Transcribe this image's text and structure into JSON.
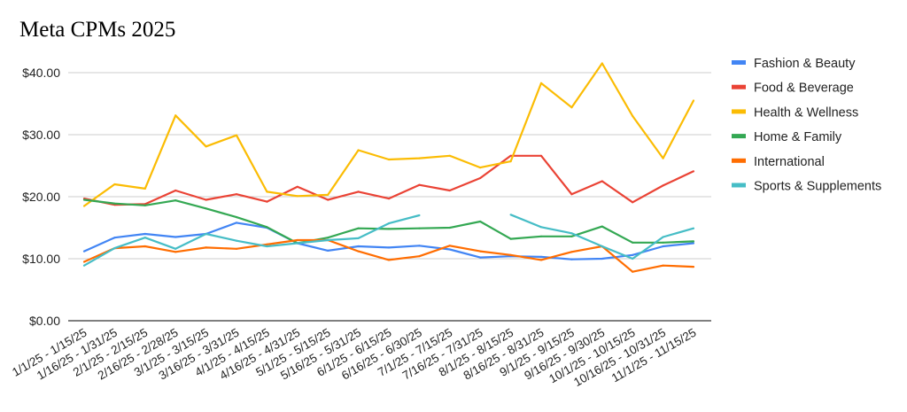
{
  "chart_data": {
    "type": "line",
    "title": "Meta CPMs 2025",
    "xlabel": "",
    "ylabel": "",
    "ylim": [
      0,
      40
    ],
    "yticks": [
      "$0.00",
      "$10.00",
      "$20.00",
      "$30.00",
      "$40.00"
    ],
    "ytick_values": [
      0,
      10,
      20,
      30,
      40
    ],
    "grid": true,
    "legend": "right",
    "categories": [
      "1/1/25 - 1/15/25",
      "1/16/25 - 1/31/25",
      "2/1/25 - 2/15/25",
      "2/16/25 - 2/28/25",
      "3/1/25 - 3/15/25",
      "3/16/25 - 3/31/25",
      "4/1/25 - 4/15/25",
      "4/16/25 - 4/31/25",
      "5/1/25 - 5/15/25",
      "5/16/25 - 5/31/25",
      "6/1/25 - 6/15/25",
      "6/16/25 - 6/30/25",
      "7/1/25 - 7/15/25",
      "7/16/25 - 7/31/25",
      "8/1/25 - 8/15/25",
      "8/16/25 - 8/31/25",
      "9/1/25 - 9/15/25",
      "9/16/25 - 9/30/25",
      "10/1/25 - 10/15/25",
      "10/16/25 - 10/31/25",
      "11/1/25 - 11/15/25"
    ],
    "series": [
      {
        "name": "Fashion & Beauty",
        "color": "#4285f4",
        "values": [
          11.2,
          13.4,
          14.0,
          13.5,
          14.0,
          15.8,
          15.0,
          12.5,
          11.3,
          12.0,
          11.8,
          12.1,
          11.5,
          10.2,
          10.4,
          10.3,
          9.9,
          10.0,
          10.6,
          12.0,
          12.5
        ]
      },
      {
        "name": "Food & Beverage",
        "color": "#ea4335",
        "values": [
          19.7,
          18.7,
          18.8,
          21.0,
          19.5,
          20.4,
          19.2,
          21.6,
          19.5,
          20.8,
          19.7,
          21.9,
          21.0,
          23.0,
          26.6,
          26.6,
          20.4,
          22.5,
          19.1,
          21.8,
          24.1
        ]
      },
      {
        "name": "Health & Wellness",
        "color": "#fbbc04",
        "values": [
          18.5,
          22.0,
          21.3,
          33.1,
          28.1,
          29.9,
          20.8,
          20.1,
          20.3,
          27.5,
          26.0,
          26.2,
          26.6,
          24.7,
          25.7,
          38.3,
          34.4,
          41.5,
          33.0,
          26.2,
          35.5
        ]
      },
      {
        "name": "Home & Family",
        "color": "#34a853",
        "values": [
          19.5,
          18.9,
          18.6,
          19.4,
          18.1,
          16.7,
          15.1,
          12.5,
          13.4,
          14.9,
          14.8,
          14.9,
          15.0,
          16.0,
          13.2,
          13.6,
          13.6,
          15.2,
          12.6,
          12.6,
          12.8
        ]
      },
      {
        "name": "International",
        "color": "#ff6d01",
        "values": [
          9.5,
          11.7,
          12.0,
          11.1,
          11.8,
          11.6,
          12.3,
          13.0,
          13.0,
          11.2,
          9.8,
          10.4,
          12.1,
          11.2,
          10.6,
          9.8,
          11.1,
          12.0,
          7.9,
          8.9,
          8.7
        ]
      },
      {
        "name": "Sports & Supplements",
        "color": "#46bdc6",
        "values": [
          8.9,
          11.7,
          13.4,
          11.6,
          14.0,
          12.9,
          12.0,
          12.5,
          13.0,
          13.3,
          15.7,
          17.0,
          null,
          null,
          17.1,
          15.1,
          14.1,
          12.0,
          10.0,
          13.5,
          14.9
        ]
      }
    ]
  }
}
